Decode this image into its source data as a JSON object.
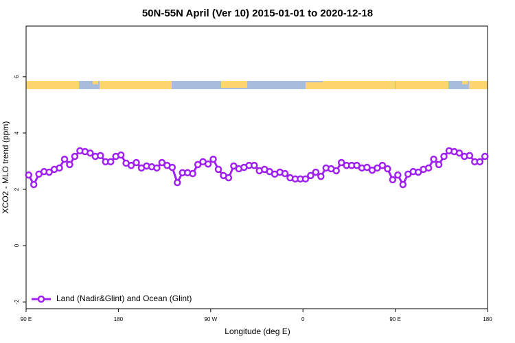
{
  "chart_data": {
    "type": "line",
    "title": "50N-55N April (Ver 10)   2015-01-01 to 2020-12-18",
    "x_label": "Longitude (deg E)",
    "y_label": "XCO2 - MLO trend (ppm)",
    "x": [
      92.5,
      97.5,
      102.5,
      107.5,
      112.5,
      117.5,
      122.5,
      127.5,
      132.5,
      137.5,
      142.5,
      147.5,
      152.5,
      157.5,
      162.5,
      167.5,
      172.5,
      177.5,
      182.5,
      187.5,
      192.5,
      197.5,
      202.5,
      207.5,
      212.5,
      217.5,
      222.5,
      227.5,
      232.5,
      237.5,
      242.5,
      247.5,
      252.5,
      257.5,
      262.5,
      267.5,
      272.5,
      277.5,
      282.5,
      287.5,
      292.5,
      297.5,
      302.5,
      307.5,
      312.5,
      317.5,
      322.5,
      327.5,
      332.5,
      337.5,
      342.5,
      347.5,
      352.5,
      357.5,
      362.5,
      367.5,
      372.5,
      377.5,
      382.5,
      387.5,
      392.5,
      397.5,
      402.5,
      407.5,
      412.5,
      417.5,
      422.5,
      427.5,
      432.5,
      437.5,
      442.5,
      447.5,
      452.5,
      457.5,
      462.5,
      467.5,
      472.5,
      477.5,
      482.5,
      487.5,
      492.5,
      497.5,
      502.5,
      507.5,
      512.5,
      517.5,
      522.5,
      527.5,
      532.5,
      537.5
    ],
    "series": [
      {
        "name": "Land (Nadir&Glint) and Ocean (Glint)",
        "color": "#a020f0",
        "values": [
          2.51,
          2.17,
          2.54,
          2.63,
          2.61,
          2.71,
          2.76,
          3.07,
          2.88,
          3.17,
          3.37,
          3.34,
          3.29,
          3.17,
          3.2,
          2.98,
          2.98,
          3.17,
          3.22,
          2.93,
          2.85,
          2.95,
          2.76,
          2.83,
          2.8,
          2.76,
          2.95,
          2.85,
          2.78,
          2.24,
          2.59,
          2.59,
          2.56,
          2.88,
          2.98,
          2.9,
          3.07,
          2.71,
          2.49,
          2.41,
          2.83,
          2.73,
          2.78,
          2.85,
          2.85,
          2.66,
          2.71,
          2.63,
          2.54,
          2.61,
          2.56,
          2.41,
          2.37,
          2.37,
          2.37,
          2.49,
          2.61,
          2.46,
          2.76,
          2.73,
          2.66,
          2.95,
          2.85,
          2.85,
          2.85,
          2.76,
          2.78,
          2.68,
          2.76,
          2.85,
          2.73,
          2.34,
          2.51,
          2.17,
          2.54,
          2.63,
          2.61,
          2.71,
          2.76,
          3.07,
          2.88,
          3.17,
          3.37,
          3.34,
          3.29,
          3.17,
          3.2,
          2.98,
          2.98,
          3.17
        ]
      }
    ],
    "xlim": [
      90,
      540
    ],
    "xticks": [
      {
        "value": 90,
        "label": "90 E"
      },
      180,
      {
        "value": 270,
        "label": "90 W"
      },
      {
        "value": 360,
        "label": "0"
      },
      {
        "value": 450,
        "label": "90 E"
      },
      180
    ],
    "ylim": [
      -2.24,
      7.8
    ],
    "yticks": [
      -2,
      0,
      2,
      4,
      6
    ],
    "legend": "bottom-left"
  }
}
